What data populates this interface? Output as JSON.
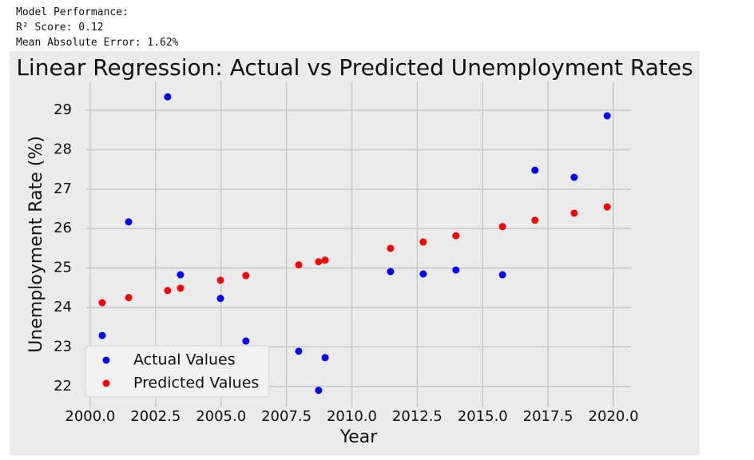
{
  "output": [
    "Model Performance:",
    "R² Score: 0.12",
    "Mean Absolute Error: 1.62%"
  ],
  "chart_data": {
    "type": "scatter",
    "title": "Linear Regression: Actual vs Predicted Unemployment Rates",
    "x_label": "Year",
    "y_label": "Unemployment Rate (%)",
    "x": [
      2000.46,
      2001.47,
      2002.96,
      2003.45,
      2004.98,
      2005.95,
      2007.97,
      2008.73,
      2008.98,
      2011.48,
      2012.73,
      2013.98,
      2015.76,
      2017.0,
      2018.5,
      2019.76
    ],
    "series": [
      {
        "name": "Actual Values",
        "color": "#0000ff",
        "values": [
          23.29,
          26.17,
          29.34,
          24.83,
          24.23,
          23.15,
          22.89,
          21.9,
          22.73,
          24.91,
          24.85,
          24.95,
          24.83,
          27.48,
          27.3,
          28.86
        ]
      },
      {
        "name": "Predicted Values",
        "color": "#ff0000",
        "values": [
          24.12,
          24.25,
          24.43,
          24.49,
          24.69,
          24.81,
          25.08,
          25.16,
          25.2,
          25.5,
          25.66,
          25.82,
          26.05,
          26.21,
          26.39,
          26.55
        ]
      }
    ],
    "xlim": [
      1999.85,
      2020.67
    ],
    "ylim": [
      21.47,
      29.73
    ],
    "xticks": [
      {
        "value": 2000,
        "label": "2000.0"
      },
      {
        "value": 2002.5,
        "label": "2002.5"
      },
      {
        "value": 2005,
        "label": "2005.0"
      },
      {
        "value": 2007.5,
        "label": "2007.5"
      },
      {
        "value": 2010,
        "label": "2010.0"
      },
      {
        "value": 2012.5,
        "label": "2012.5"
      },
      {
        "value": 2015,
        "label": "2015.0"
      },
      {
        "value": 2017.5,
        "label": "2017.5"
      },
      {
        "value": 2020,
        "label": "2020.0"
      }
    ],
    "yticks": [
      22,
      23,
      24,
      25,
      26,
      27,
      28,
      29
    ],
    "grid": true,
    "legend": "lower left"
  }
}
